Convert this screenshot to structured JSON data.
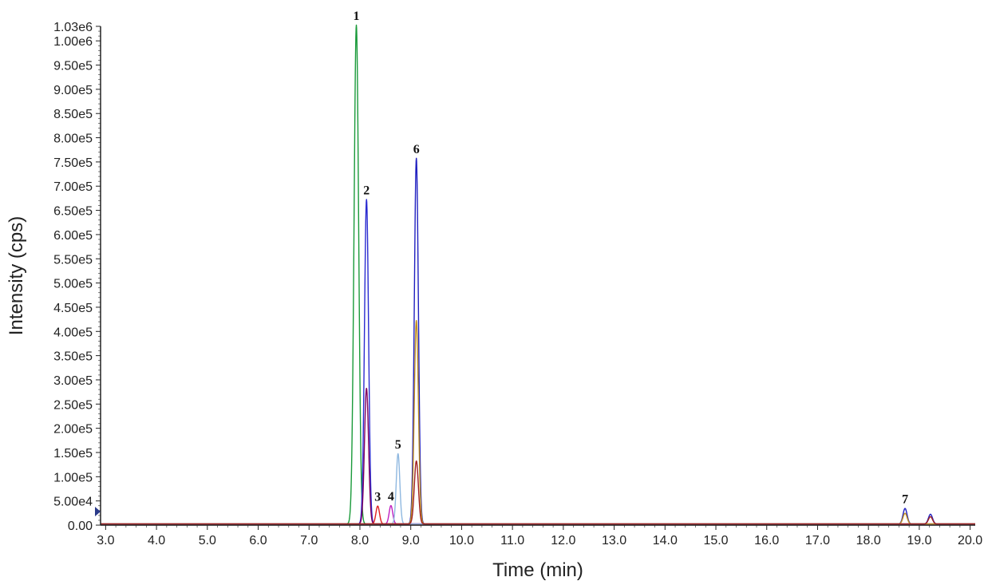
{
  "chart_data": {
    "type": "line",
    "xlabel": "Time (min)",
    "ylabel": "Intensity (cps)",
    "xlim": [
      2.9,
      20.1
    ],
    "ylim": [
      0,
      1030000
    ],
    "x_ticks": [
      "3.0",
      "4.0",
      "5.0",
      "6.0",
      "7.0",
      "8.0",
      "9.0",
      "10.0",
      "11.0",
      "12.0",
      "13.0",
      "14.0",
      "15.0",
      "16.0",
      "17.0",
      "18.0",
      "19.0",
      "20.0"
    ],
    "y_ticks": [
      "0.00",
      "5.00e4",
      "1.00e5",
      "1.50e5",
      "2.00e5",
      "2.50e5",
      "3.00e5",
      "3.50e5",
      "4.00e5",
      "4.50e5",
      "5.00e5",
      "5.50e5",
      "6.00e5",
      "6.50e5",
      "7.00e5",
      "7.50e5",
      "8.00e5",
      "8.50e5",
      "9.00e5",
      "9.50e5",
      "1.00e6",
      "1.03e6"
    ],
    "y_tick_values": [
      0,
      50000,
      100000,
      150000,
      200000,
      250000,
      300000,
      350000,
      400000,
      450000,
      500000,
      550000,
      600000,
      650000,
      700000,
      750000,
      800000,
      850000,
      900000,
      950000,
      1000000,
      1030000
    ],
    "series": [
      {
        "color": "#1a9a3a",
        "peaks": [
          {
            "rt": 7.93,
            "height": 1030000,
            "width": 0.045
          }
        ]
      },
      {
        "color": "#2a2ad0",
        "peaks": [
          {
            "rt": 8.13,
            "height": 670000,
            "width": 0.04
          }
        ]
      },
      {
        "color": "#800060",
        "peaks": [
          {
            "rt": 8.13,
            "height": 280000,
            "width": 0.04
          }
        ]
      },
      {
        "color": "#e02020",
        "peaks": [
          {
            "rt": 8.35,
            "height": 37000,
            "width": 0.035
          }
        ]
      },
      {
        "color": "#c020c0",
        "peaks": [
          {
            "rt": 8.61,
            "height": 38000,
            "width": 0.035
          }
        ]
      },
      {
        "color": "#8fb8e0",
        "peaks": [
          {
            "rt": 8.75,
            "height": 145000,
            "width": 0.035
          }
        ]
      },
      {
        "color": "#2020c0",
        "peaks": [
          {
            "rt": 9.11,
            "height": 755000,
            "width": 0.04
          },
          {
            "rt": 18.72,
            "height": 32000,
            "width": 0.04
          },
          {
            "rt": 19.22,
            "height": 20000,
            "width": 0.04
          }
        ]
      },
      {
        "color": "#c09020",
        "peaks": [
          {
            "rt": 9.11,
            "height": 420000,
            "width": 0.04
          },
          {
            "rt": 18.72,
            "height": 22000,
            "width": 0.04
          }
        ]
      },
      {
        "color": "#a02020",
        "peaks": [
          {
            "rt": 9.11,
            "height": 130000,
            "width": 0.04
          },
          {
            "rt": 19.22,
            "height": 15000,
            "width": 0.04
          }
        ]
      }
    ],
    "peak_labels": [
      {
        "text": "1",
        "x": 7.93,
        "y": 1030000
      },
      {
        "text": "2",
        "x": 8.13,
        "y": 670000
      },
      {
        "text": "3",
        "x": 8.35,
        "y": 37000
      },
      {
        "text": "4",
        "x": 8.61,
        "y": 38000
      },
      {
        "text": "5",
        "x": 8.75,
        "y": 145000
      },
      {
        "text": "6",
        "x": 9.11,
        "y": 755000
      },
      {
        "text": "7",
        "x": 18.72,
        "y": 32000
      }
    ]
  }
}
